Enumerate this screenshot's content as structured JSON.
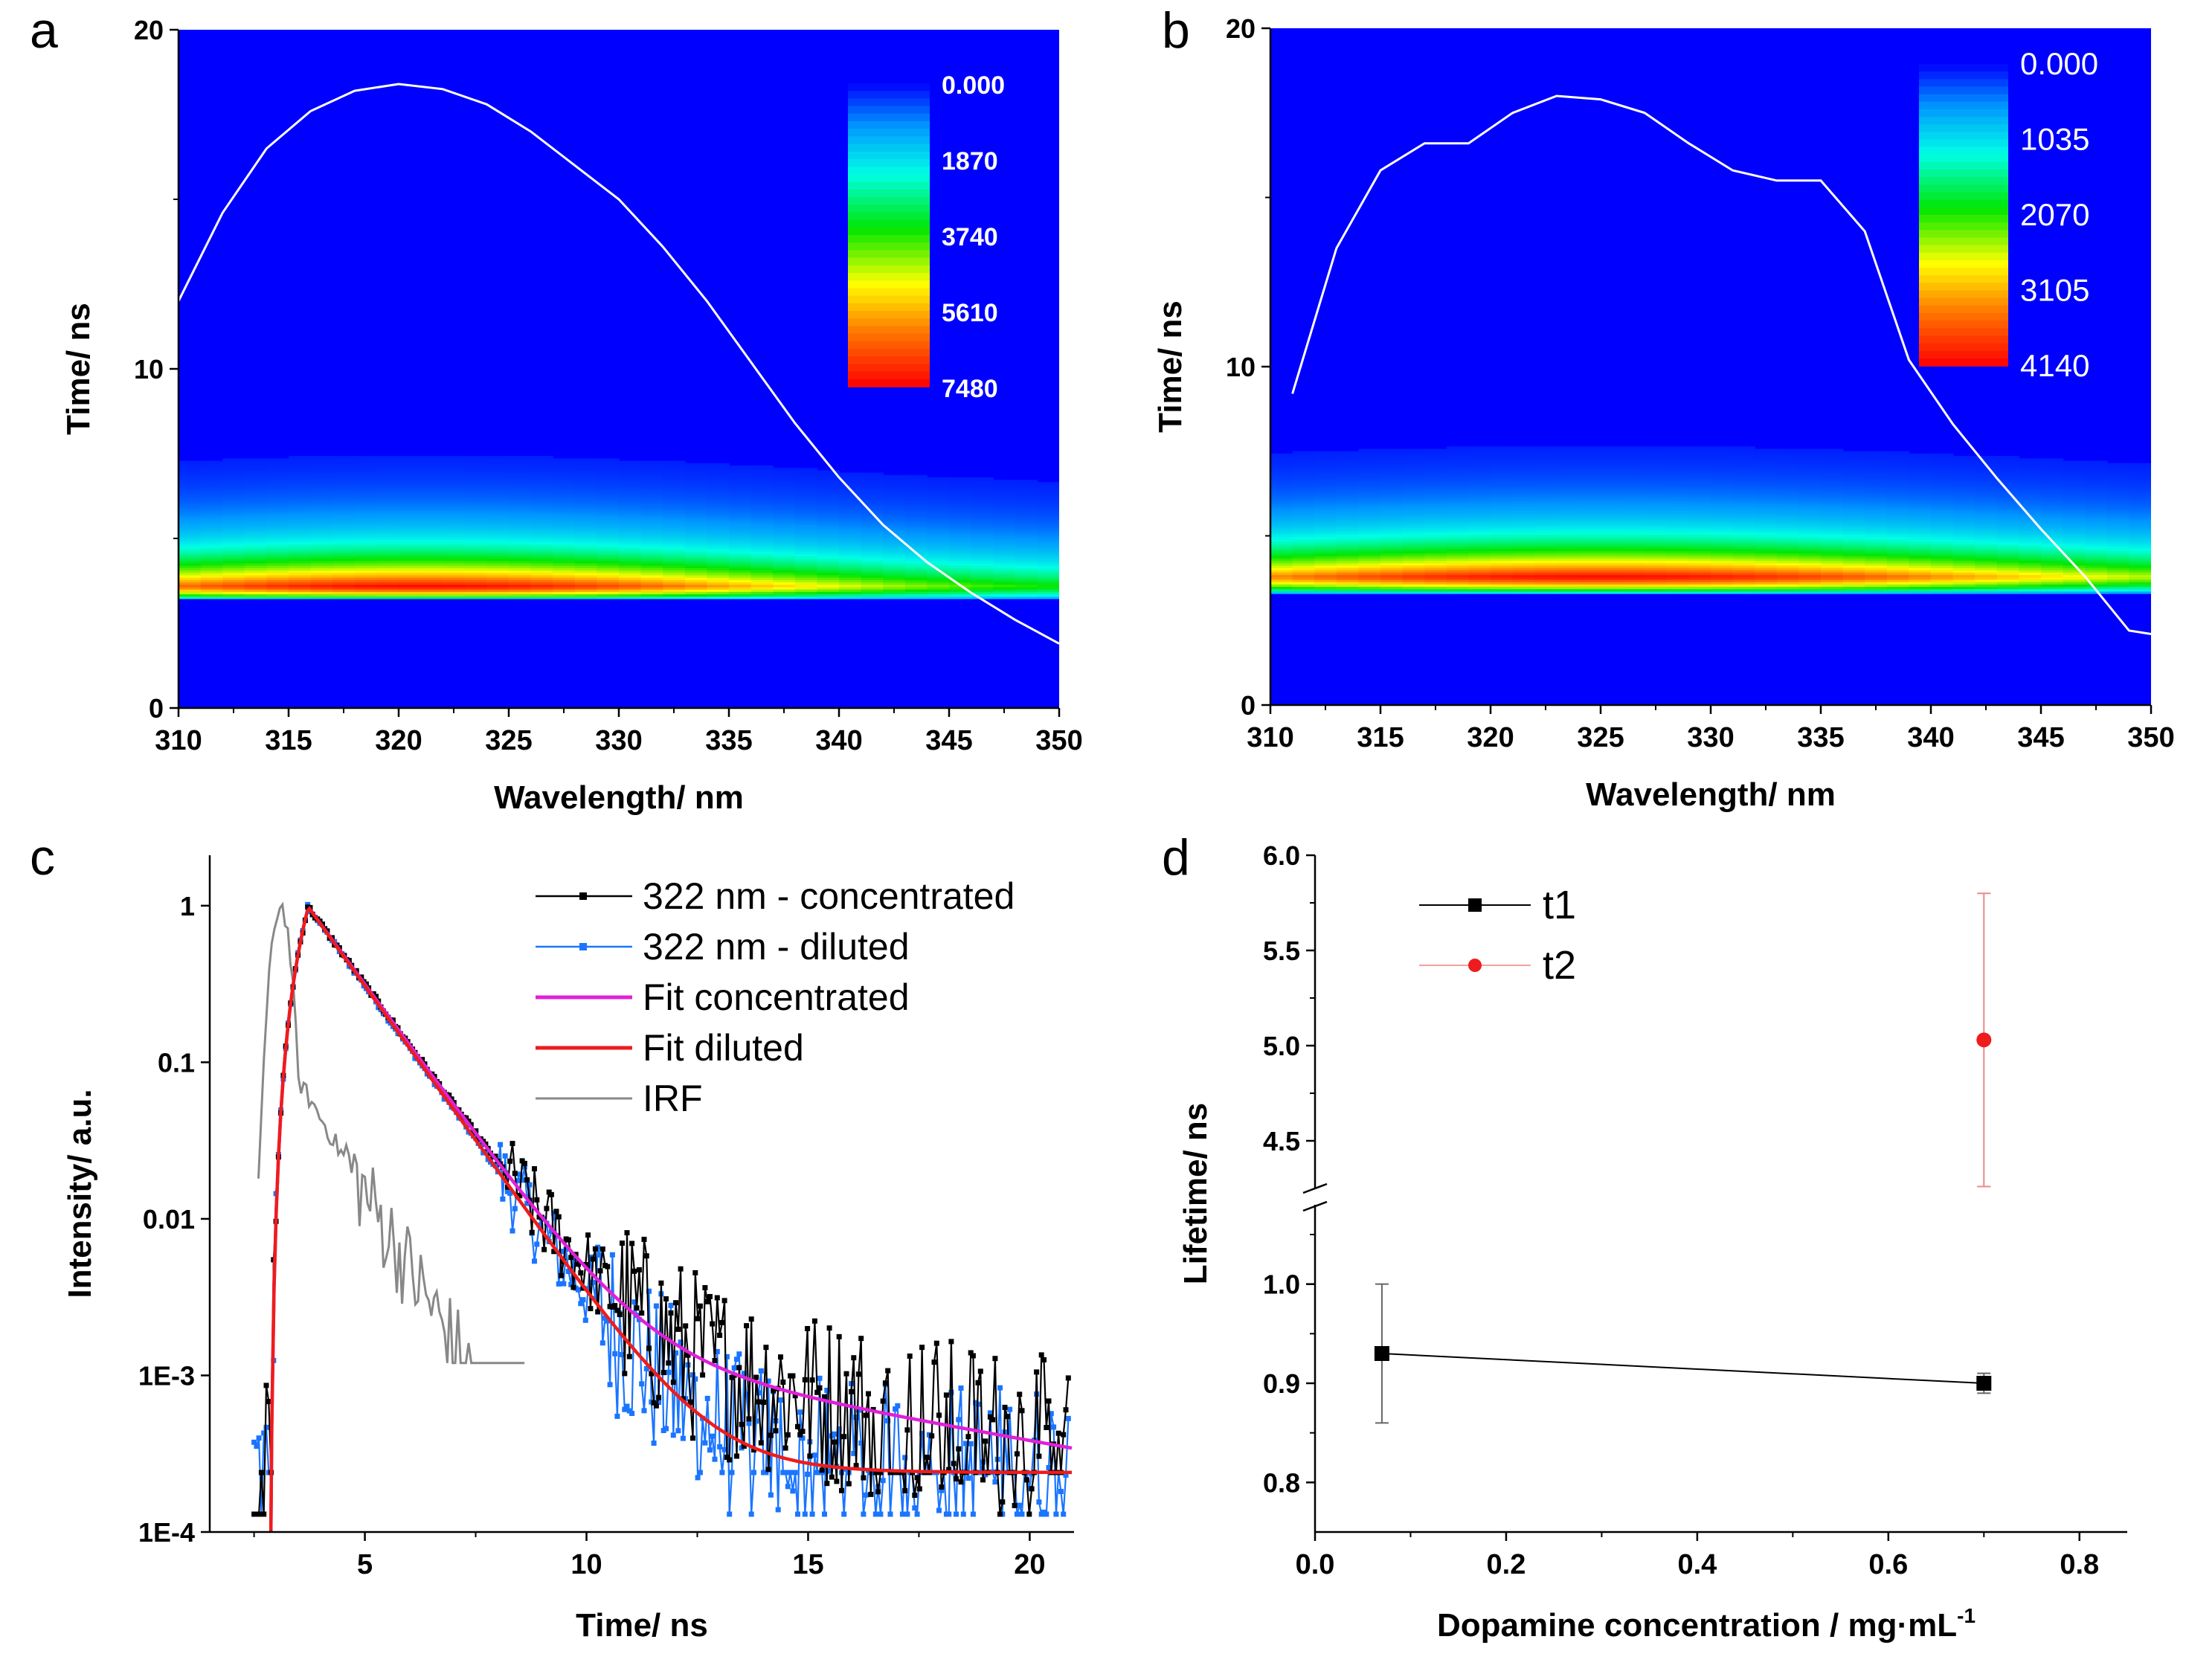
{
  "panel_letters": [
    "a",
    "b",
    "c",
    "d"
  ],
  "chart_data": [
    {
      "panel": "a",
      "type": "heatmap",
      "xlabel": "Wavelength/ nm",
      "ylabel": "Time/ ns",
      "xlim": [
        310,
        350
      ],
      "ylim": [
        0,
        20
      ],
      "xticks": [
        310,
        315,
        320,
        325,
        330,
        335,
        340,
        345,
        350
      ],
      "yticks": [
        0,
        10,
        20
      ],
      "colorbar": {
        "labels": [
          "0.000",
          "1870",
          "3740",
          "5610",
          "7480"
        ],
        "max": 7480
      },
      "band": {
        "peak_time": 3.6,
        "rise_time": 3.2,
        "peak_wavelength": 321,
        "wavelength_width": 20
      },
      "spectrum_curve": {
        "x": [
          310,
          312,
          314,
          316,
          318,
          320,
          322,
          324,
          326,
          328,
          330,
          332,
          334,
          336,
          338,
          340,
          342,
          344,
          346,
          348,
          350
        ],
        "y": [
          12.0,
          14.6,
          16.5,
          17.6,
          18.2,
          18.4,
          18.25,
          17.8,
          17.0,
          16.0,
          15.0,
          13.6,
          12.0,
          10.2,
          8.4,
          6.8,
          5.4,
          4.3,
          3.4,
          2.6,
          1.9
        ]
      }
    },
    {
      "panel": "b",
      "type": "heatmap",
      "xlabel": "Wavelength/ nm",
      "ylabel": "Time/ ns",
      "xlim": [
        310,
        350
      ],
      "ylim": [
        0,
        20
      ],
      "xticks": [
        310,
        315,
        320,
        325,
        330,
        335,
        340,
        345,
        350
      ],
      "yticks": [
        0,
        10,
        20
      ],
      "colorbar": {
        "labels": [
          "0.000",
          "1035",
          "2070",
          "3105",
          "4140"
        ],
        "max": 4140
      },
      "band": {
        "peak_time": 3.8,
        "rise_time": 3.3,
        "peak_wavelength": 325,
        "wavelength_width": 24
      },
      "spectrum_curve": {
        "x": [
          311,
          313,
          315,
          317,
          319,
          321,
          323,
          325,
          327,
          329,
          331,
          333,
          335,
          337,
          339,
          341,
          343,
          345,
          347,
          349,
          350
        ],
        "y": [
          9.2,
          13.5,
          15.8,
          16.6,
          16.6,
          17.5,
          18.0,
          17.9,
          17.5,
          16.6,
          15.8,
          15.5,
          15.5,
          14.0,
          10.2,
          8.3,
          6.7,
          5.2,
          3.8,
          2.2,
          2.1
        ]
      }
    },
    {
      "panel": "c",
      "type": "line",
      "yscale": "log",
      "xlabel": "Time/ ns",
      "ylabel": "Intensity/ a.u.",
      "xlim": [
        1.5,
        21
      ],
      "ylim": [
        0.0001,
        2.1
      ],
      "xticks": [
        5,
        10,
        15,
        20
      ],
      "ytick_values": [
        1,
        0.1,
        0.01,
        0.001,
        0.0001
      ],
      "ytick_labels": [
        "1",
        "0.1",
        "0.01",
        "1E-3",
        "1E-4"
      ],
      "legend": [
        "322 nm - concentrated",
        "322 nm - diluted",
        "Fit concentrated",
        "Fit diluted",
        "IRF"
      ],
      "model": {
        "t0": 2.85,
        "peak_time": 3.7,
        "concentrated_decay_ns": 1.12,
        "concentrated_tail": 0.0014,
        "concentrated_tail_decay_ns": 8.5,
        "diluted_decay_ns": 1.1,
        "diluted_floor": 0.00024,
        "irf_peak_time": 3.1,
        "irf_width_ns": 0.25
      },
      "series": [
        {
          "name": "322 nm - concentrated",
          "color": "#000000"
        },
        {
          "name": "322 nm - diluted",
          "color": "#1a75ff"
        },
        {
          "name": "Fit concentrated",
          "color": "#e020d8"
        },
        {
          "name": "Fit diluted",
          "color": "#ee1c1c"
        },
        {
          "name": "IRF",
          "color": "#888888"
        }
      ]
    },
    {
      "panel": "d",
      "type": "scatter",
      "xlabel": "Dopamine concentration / mg·mL",
      "xlabel_superscript": "-1",
      "ylabel": "Lifetime/ ns",
      "xlim": [
        0,
        0.85
      ],
      "xticks": [
        0.0,
        0.2,
        0.4,
        0.6,
        0.8
      ],
      "broken_yaxis": true,
      "lower_ylim": [
        0.75,
        1.08
      ],
      "lower_yticks": [
        0.8,
        0.9,
        1.0
      ],
      "upper_ylim": [
        4.25,
        6.0
      ],
      "upper_yticks": [
        4.5,
        5.0,
        5.5,
        6.0
      ],
      "legend": [
        "t1",
        "t2"
      ],
      "series": [
        {
          "name": "t1",
          "color": "#000000",
          "x": [
            0.07,
            0.7
          ],
          "y": [
            0.93,
            0.9
          ],
          "yerr": [
            0.07,
            0.01
          ]
        },
        {
          "name": "t2",
          "color": "#ee1c1c",
          "x": [
            0.7
          ],
          "y": [
            5.03
          ],
          "yerr": [
            0.77
          ]
        }
      ]
    }
  ]
}
